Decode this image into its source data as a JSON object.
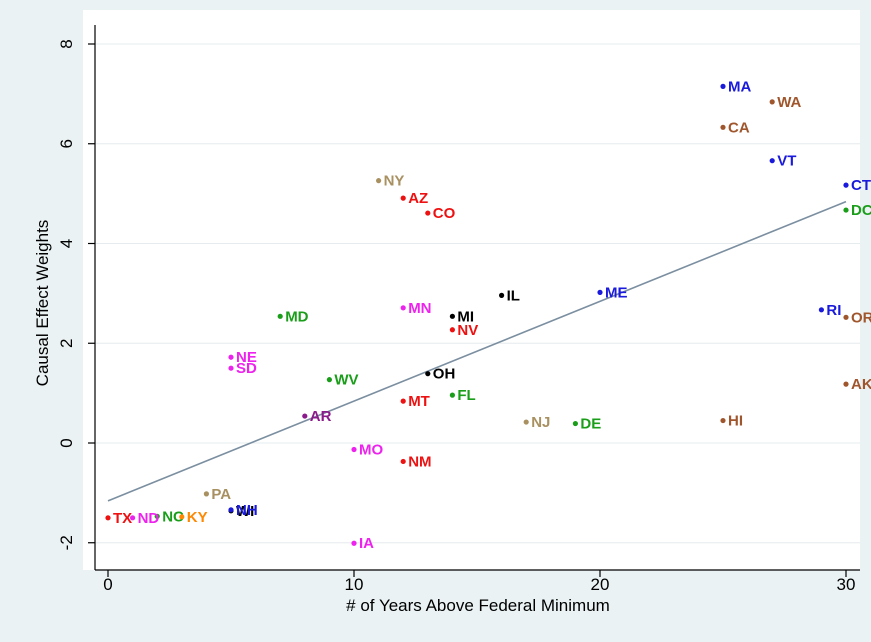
{
  "chart_data": {
    "type": "scatter",
    "xlabel": "# of Years Above Federal Minimum",
    "ylabel": "Causal Effect Weights",
    "xlim": [
      -1,
      30.5
    ],
    "ylim": [
      -2.4,
      8.7
    ],
    "xticks": [
      0,
      10,
      20,
      30
    ],
    "yticks": [
      -2,
      0,
      2,
      4,
      6,
      8
    ],
    "xtick_labels": [
      "0",
      "10",
      "20",
      "30"
    ],
    "ytick_labels": [
      "-2",
      "0",
      "2",
      "4",
      "6",
      "8"
    ],
    "grid": "horizontal",
    "colors": {
      "background": "#eaf2f3",
      "plot_area": "#ffffff",
      "fit_line": "#7b8fa1",
      "grid": "#e6ecee"
    },
    "fit_line": {
      "x": [
        0,
        30
      ],
      "y": [
        -1.16,
        4.84
      ]
    },
    "points": [
      {
        "label": "MA",
        "x": 25,
        "y": 7.15,
        "color": "#1a1adc"
      },
      {
        "label": "WA",
        "x": 27,
        "y": 6.84,
        "color": "#a0562d"
      },
      {
        "label": "CA",
        "x": 25,
        "y": 6.33,
        "color": "#a0562d"
      },
      {
        "label": "VT",
        "x": 27,
        "y": 5.66,
        "color": "#1a1adc"
      },
      {
        "label": "CT",
        "x": 30,
        "y": 5.17,
        "color": "#1a1adc"
      },
      {
        "label": "DC",
        "x": 30,
        "y": 4.67,
        "color": "#1a9e1a"
      },
      {
        "label": "NY",
        "x": 11,
        "y": 5.26,
        "color": "#a89060"
      },
      {
        "label": "AZ",
        "x": 12,
        "y": 4.91,
        "color": "#ee1111"
      },
      {
        "label": "CO",
        "x": 13,
        "y": 4.61,
        "color": "#ee1111"
      },
      {
        "label": "IL",
        "x": 16,
        "y": 2.96,
        "color": "#000000"
      },
      {
        "label": "ME",
        "x": 20,
        "y": 3.02,
        "color": "#1a1adc"
      },
      {
        "label": "RI",
        "x": 29,
        "y": 2.67,
        "color": "#1a1adc"
      },
      {
        "label": "OR",
        "x": 30,
        "y": 2.52,
        "color": "#a0562d"
      },
      {
        "label": "MN",
        "x": 12,
        "y": 2.71,
        "color": "#ee22ee"
      },
      {
        "label": "MI",
        "x": 14,
        "y": 2.54,
        "color": "#000000"
      },
      {
        "label": "NV",
        "x": 14,
        "y": 2.27,
        "color": "#ee1111"
      },
      {
        "label": "MD",
        "x": 7,
        "y": 2.54,
        "color": "#1a9e1a"
      },
      {
        "label": "NE",
        "x": 5,
        "y": 1.72,
        "color": "#ee22ee"
      },
      {
        "label": "SD",
        "x": 5,
        "y": 1.5,
        "color": "#ee22ee"
      },
      {
        "label": "WV",
        "x": 9,
        "y": 1.27,
        "color": "#1a9e1a"
      },
      {
        "label": "OH",
        "x": 13,
        "y": 1.39,
        "color": "#000000"
      },
      {
        "label": "FL",
        "x": 14,
        "y": 0.96,
        "color": "#1a9e1a"
      },
      {
        "label": "MT",
        "x": 12,
        "y": 0.84,
        "color": "#ee1111"
      },
      {
        "label": "AK",
        "x": 30,
        "y": 1.18,
        "color": "#a0562d"
      },
      {
        "label": "AR",
        "x": 8,
        "y": 0.54,
        "color": "#8b1a8b"
      },
      {
        "label": "NJ",
        "x": 17,
        "y": 0.42,
        "color": "#a89060"
      },
      {
        "label": "DE",
        "x": 19,
        "y": 0.39,
        "color": "#1a9e1a"
      },
      {
        "label": "HI",
        "x": 25,
        "y": 0.45,
        "color": "#a0562d"
      },
      {
        "label": "MO",
        "x": 10,
        "y": -0.13,
        "color": "#ee22ee"
      },
      {
        "label": "NM",
        "x": 12,
        "y": -0.37,
        "color": "#ee1111"
      },
      {
        "label": "PA",
        "x": 4,
        "y": -1.02,
        "color": "#a89060"
      },
      {
        "label": "WI",
        "x": 5,
        "y": -1.36,
        "color": "#000000"
      },
      {
        "label": "NH",
        "x": 5,
        "y": -1.34,
        "color": "#1a1adc"
      },
      {
        "label": "NC",
        "x": 2,
        "y": -1.47,
        "color": "#1a9e1a"
      },
      {
        "label": "KY",
        "x": 3,
        "y": -1.48,
        "color": "#ff8800"
      },
      {
        "label": "ND",
        "x": 1,
        "y": -1.5,
        "color": "#ee22ee"
      },
      {
        "label": "TX",
        "x": 0,
        "y": -1.5,
        "color": "#ee1111"
      },
      {
        "label": "IA",
        "x": 10,
        "y": -2.01,
        "color": "#ee22ee"
      }
    ]
  }
}
